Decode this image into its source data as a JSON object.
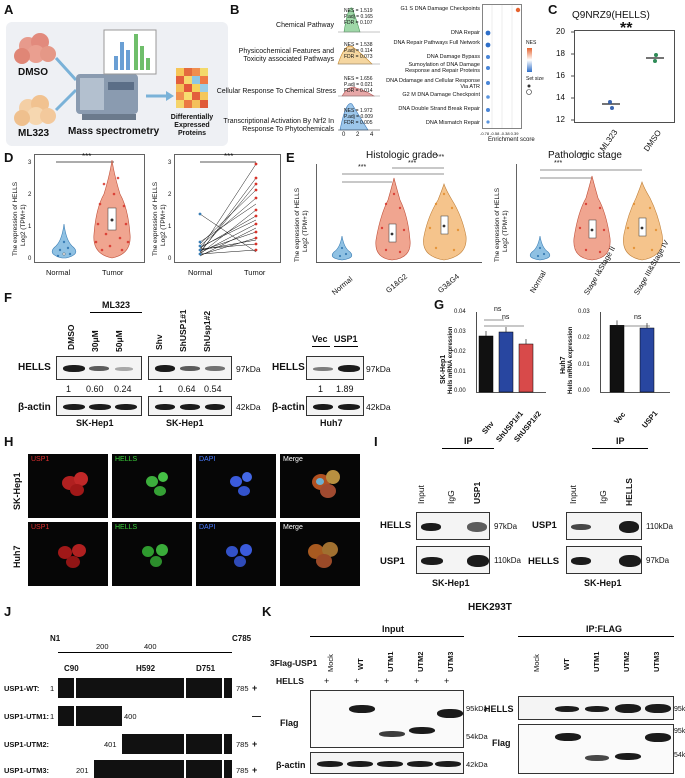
{
  "panels": {
    "A": "A",
    "B": "B",
    "C": "C",
    "D": "D",
    "E": "E",
    "F": "F",
    "G": "G",
    "H": "H",
    "I": "I",
    "J": "J",
    "K": "K"
  },
  "A": {
    "dmso": "DMSO",
    "ml323": "ML323",
    "ms": "Mass spectrometry",
    "dep": "Differentially Expressed Proteins"
  },
  "B": {
    "left_pathways": [
      {
        "name": "Chemical Pathway",
        "nes": "NES = 1.519",
        "padj": "P.adj = 0.165",
        "fdr": "FDR = 0.107"
      },
      {
        "name": "Physicochemical Features and Toxicity associated Pathways",
        "nes": "NES = 1.538",
        "padj": "P.adj = 0.114",
        "fdr": "FDR = 0.073"
      },
      {
        "name": "Cellular Response To Chemical Stress",
        "nes": "NES = 1.656",
        "padj": "P.adj = 0.021",
        "fdr": "FDR = 0.014"
      },
      {
        "name": "Transcriptional Activation By Nrf2 In Response To Phytochemicals",
        "nes": "NES = 1.972",
        "padj": "P.adj = 0.009",
        "fdr": "FDR = 0.005"
      }
    ],
    "ticks": [
      "0",
      "2",
      "4"
    ],
    "right_terms": [
      "G1 S DNA Damage Checkpoints",
      "DNA Repair",
      "DNA Repair Pathways Full Network",
      "DNA Damage Bypass",
      "Sumoylation of DNA Damage Response and Repair Proteins",
      "DNA Ddamage and Cellular Response Via ATR",
      "G2 M DNA Damage Checkpoint",
      "DNA Double Strand Break Repair",
      "DNA Mismatch Repair"
    ],
    "xlabel": "Enrichment score",
    "legend_nes": "NES",
    "legend_size": "Set size"
  },
  "C": {
    "title": "Q9NRZ9(HELLS)",
    "sig": "**",
    "yticks": [
      "20",
      "18",
      "16",
      "14",
      "12"
    ],
    "groups": [
      "ML323",
      "DMSO"
    ]
  },
  "D": {
    "ylabel": "The expression of HELLS",
    "ylabel2": "Log2 (TPM+1)",
    "groups": [
      "Normal",
      "Tumor"
    ],
    "sig": "***",
    "yticks1": [
      "0",
      "1",
      "2",
      "3"
    ],
    "yticks2": [
      "0",
      "1",
      "2",
      "3"
    ]
  },
  "E": {
    "title1": "Histologic grade",
    "title2": "Pathologic stage",
    "groups1": [
      "Normal",
      "G1&G2",
      "G3&G4"
    ],
    "groups2": [
      "Normal",
      "Stage I&Stage II",
      "Stage III&Stage IV"
    ],
    "sig": "***"
  },
  "F": {
    "ml323": "ML323",
    "dmso": "DMSO",
    "c30": "30μM",
    "c50": "50μM",
    "hells": "HELLS",
    "actin": "β-actin",
    "vals1": [
      "1",
      "0.60",
      "0.24"
    ],
    "vals2": [
      "1",
      "0.64",
      "0.54"
    ],
    "vals3": [
      "1",
      "1.89"
    ],
    "shv": "Shv",
    "sh1": "ShUSP1#1",
    "sh2": "ShUsp1#2",
    "vec": "Vec",
    "usp1": "USP1",
    "kda97": "97kDa",
    "kda42": "42kDa",
    "cell1": "SK-Hep1",
    "cell2": "Huh7"
  },
  "G": {
    "ylabel1": "SK-Hep1",
    "ylabel1b": "Hells mRNA expression",
    "ylabel2": "Huh7",
    "ylabel2b": "Hells mRNA expression",
    "ns": "ns",
    "groups1": [
      "Shv",
      "ShUSP1#1",
      "ShUSP1#2"
    ],
    "groups2": [
      "Vec",
      "USP1"
    ],
    "yt1": [
      "0.04",
      "0.03",
      "0.02",
      "0.01",
      "0.00"
    ],
    "yt2": [
      "0.03",
      "0.02",
      "0.01",
      "0.00"
    ],
    "values1": [
      0.028,
      0.03,
      0.024
    ],
    "values2": [
      0.025,
      0.024
    ]
  },
  "H": {
    "rows": [
      "SK-Hep1",
      "Huh7"
    ],
    "channels": [
      "USP1",
      "HELLS",
      "DAPI",
      "Merge"
    ]
  },
  "I": {
    "ip": "IP",
    "input": "Input",
    "igg": "IgG",
    "usp1": "USP1",
    "hells": "HELLS",
    "k97": "97kDa",
    "k110": "110kDa",
    "cell": "SK-Hep1"
  },
  "J": {
    "n": "N1",
    "c": "C785",
    "t200": "200",
    "t400": "400",
    "c90": "C90",
    "h592": "H592",
    "d751": "D751",
    "constructs": [
      {
        "name": "USP1-WT:",
        "start": "1",
        "end": "785",
        "bind": "+"
      },
      {
        "name": "USP1-UTM1:",
        "start": "1",
        "end": "400",
        "bind": "—"
      },
      {
        "name": "USP1-UTM2:",
        "start": "401",
        "end": "785",
        "bind": "+"
      },
      {
        "name": "USP1-UTM3:",
        "start": "201",
        "end": "785",
        "bind": "+"
      }
    ]
  },
  "K": {
    "title": "HEK293T",
    "input": "Input",
    "ipflag": "IP:FLAG",
    "flagusp1": "3Flag-USP1",
    "hells": "HELLS",
    "lanes": [
      "Mock",
      "WT",
      "UTM1",
      "UTM2",
      "UTM3"
    ],
    "plus": "+",
    "flag": "Flag",
    "actin": "β-actin",
    "k95": "95kDa",
    "k54": "54kDa",
    "k42": "42kDa"
  }
}
